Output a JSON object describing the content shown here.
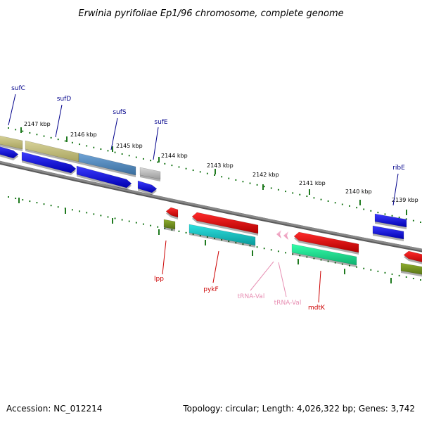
{
  "title": "Erwinia pyrifoliae Ep1/96 chromosome, complete genome",
  "footer": {
    "accession": "Accession: NC_012214",
    "summary": "Topology: circular; Length: 4,026,322 bp; Genes: 3,742"
  },
  "colors": {
    "backbone": "#888888",
    "tick": "#1f7a1f",
    "forward_label": "#00008b",
    "reverse_label": "#cc0000",
    "trna_label": "#e78fb3"
  },
  "ticks": {
    "upper_labels": [
      "2147 kbp",
      "2146 kbp",
      "2145 kbp",
      "2144 kbp",
      "2143 kbp",
      "2142 kbp",
      "2141 kbp",
      "2140 kbp",
      "2139 kbp"
    ],
    "lower_labels": []
  },
  "features": [
    {
      "label": "sufC",
      "type": "gene",
      "strand": "forward",
      "color": "#0000ee"
    },
    {
      "label": "sufD",
      "type": "gene",
      "strand": "forward",
      "color": "#0000ee"
    },
    {
      "label": "sufS",
      "type": "gene",
      "strand": "forward",
      "color": "#0000ee"
    },
    {
      "label": "sufE",
      "type": "gene",
      "strand": "forward",
      "color": "#0000ee"
    },
    {
      "label": "ribE",
      "type": "gene",
      "strand": "forward",
      "color": "#0000ee"
    },
    {
      "label": "lpp",
      "type": "gene",
      "strand": "reverse",
      "color": "#ee0000"
    },
    {
      "label": "pykF",
      "type": "gene",
      "strand": "reverse",
      "color": "#ee0000"
    },
    {
      "label": "tRNA-Val",
      "type": "tRNA",
      "strand": "reverse",
      "color": "#f4a6c4"
    },
    {
      "label": "tRNA-Val",
      "type": "tRNA",
      "strand": "reverse",
      "color": "#f4a6c4"
    },
    {
      "label": "mdtK",
      "type": "gene",
      "strand": "reverse",
      "color": "#ee0000"
    }
  ]
}
